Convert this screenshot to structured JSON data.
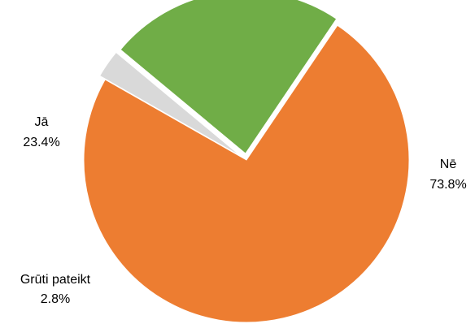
{
  "chart_data": {
    "type": "pie",
    "title": "",
    "slices": [
      {
        "label": "Nē",
        "value": 73.8,
        "value_label": "73.8%",
        "color": "#ED7D31"
      },
      {
        "label": "Grūti pateikt",
        "value": 2.8,
        "value_label": "2.8%",
        "color": "#D9D9D9"
      },
      {
        "label": "Jā",
        "value": 23.4,
        "value_label": "23.4%",
        "color": "#70AD47"
      }
    ],
    "start_angle_deg": 34,
    "direction": "clockwise",
    "exploded": true,
    "legend": "none"
  }
}
